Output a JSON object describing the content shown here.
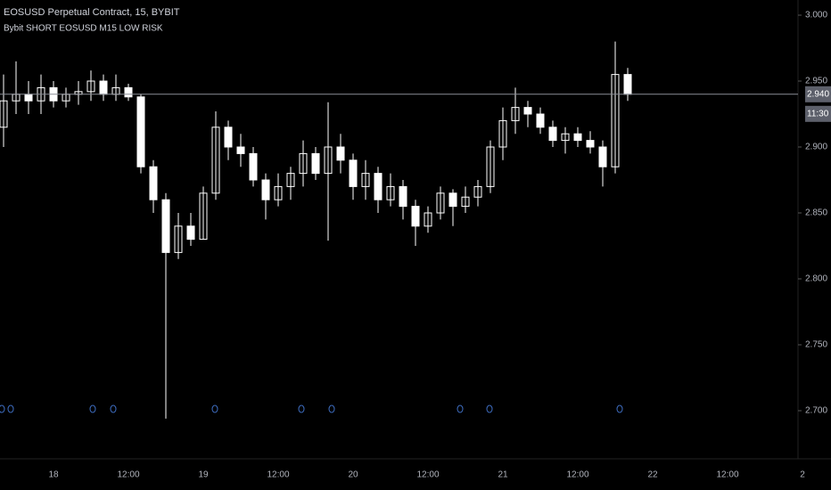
{
  "chart_data": {
    "type": "candlestick",
    "title": "EOSUSD Perpetual Contract, 15, BYBIT",
    "subtitle": "Bybit SHORT EOSUSD M15 LOW RISK",
    "categories": [
      null,
      null,
      null,
      null,
      "18",
      null,
      null,
      null,
      null,
      null,
      "12:00",
      null,
      null,
      null,
      null,
      null,
      "19",
      null,
      null,
      null,
      null,
      null,
      "12:00",
      null,
      null,
      null,
      null,
      null,
      "20",
      null,
      null,
      null,
      null,
      null,
      "12:00",
      null,
      null,
      null,
      null,
      null,
      "21",
      null,
      null,
      null,
      null,
      null,
      "12:00",
      null,
      null,
      null,
      null,
      null,
      "22",
      null,
      null,
      null,
      null,
      null,
      "12:00",
      null,
      null,
      null,
      null,
      null,
      "2"
    ],
    "open": [
      2.915,
      2.935,
      2.94,
      2.935,
      2.945,
      2.935,
      2.94,
      2.942,
      2.95,
      2.94,
      2.945,
      2.938,
      2.885,
      2.86,
      2.82,
      2.84,
      2.83,
      2.865,
      2.915,
      2.9,
      2.895,
      2.875,
      2.86,
      2.87,
      2.88,
      2.895,
      2.88,
      2.9,
      2.89,
      2.87,
      2.88,
      2.86,
      2.87,
      2.855,
      2.84,
      2.85,
      2.865,
      2.855,
      2.862,
      2.87,
      2.9,
      2.92,
      2.93,
      2.925,
      2.915,
      2.905,
      2.91,
      2.905,
      2.9,
      2.885,
      2.955,
      null,
      null,
      null,
      null,
      null,
      null,
      null,
      null,
      null,
      null,
      null,
      null,
      null,
      null
    ],
    "high": [
      2.955,
      2.965,
      2.95,
      2.955,
      2.95,
      2.945,
      2.95,
      2.958,
      2.955,
      2.955,
      2.948,
      2.94,
      2.89,
      2.865,
      2.85,
      2.85,
      2.87,
      2.927,
      2.92,
      2.91,
      2.9,
      2.88,
      2.88,
      2.885,
      2.905,
      2.9,
      2.934,
      2.91,
      2.895,
      2.89,
      2.885,
      2.88,
      2.875,
      2.86,
      2.855,
      2.87,
      2.868,
      2.87,
      2.875,
      2.905,
      2.93,
      2.945,
      2.935,
      2.93,
      2.92,
      2.915,
      2.915,
      2.912,
      2.905,
      2.98,
      2.96,
      null,
      null,
      null,
      null,
      null,
      null,
      null,
      null,
      null,
      null,
      null,
      null,
      null,
      null
    ],
    "low": [
      2.9,
      2.925,
      2.925,
      2.925,
      2.93,
      2.93,
      2.932,
      2.935,
      2.935,
      2.935,
      2.935,
      2.88,
      2.85,
      2.694,
      2.815,
      2.825,
      2.83,
      2.86,
      2.89,
      2.885,
      2.87,
      2.845,
      2.855,
      2.86,
      2.87,
      2.875,
      2.829,
      2.88,
      2.86,
      2.86,
      2.85,
      2.855,
      2.845,
      2.825,
      2.835,
      2.845,
      2.84,
      2.85,
      2.855,
      2.865,
      2.89,
      2.91,
      2.915,
      2.91,
      2.9,
      2.895,
      2.9,
      2.895,
      2.87,
      2.88,
      2.935,
      null,
      null,
      null,
      null,
      null,
      null,
      null,
      null,
      null,
      null,
      null,
      null,
      null,
      null
    ],
    "close": [
      2.935,
      2.94,
      2.935,
      2.945,
      2.935,
      2.94,
      2.942,
      2.95,
      2.94,
      2.945,
      2.938,
      2.885,
      2.86,
      2.82,
      2.84,
      2.83,
      2.865,
      2.915,
      2.9,
      2.895,
      2.875,
      2.86,
      2.87,
      2.88,
      2.895,
      2.88,
      2.9,
      2.89,
      2.87,
      2.88,
      2.86,
      2.87,
      2.855,
      2.84,
      2.85,
      2.865,
      2.855,
      2.862,
      2.87,
      2.9,
      2.92,
      2.93,
      2.925,
      2.915,
      2.905,
      2.91,
      2.905,
      2.9,
      2.885,
      2.955,
      2.94,
      null,
      null,
      null,
      null,
      null,
      null,
      null,
      null,
      null,
      null,
      null,
      null,
      null,
      null
    ],
    "up_color": "#ffffff",
    "down_color": "#ffffff",
    "ylim": [
      2.6635,
      3.0115
    ],
    "yticks": [
      {
        "value": 2.7,
        "label": "2.700"
      },
      {
        "value": 2.75,
        "label": "2.750"
      },
      {
        "value": 2.8,
        "label": "2.800"
      },
      {
        "value": 2.85,
        "label": "2.850"
      },
      {
        "value": 2.9,
        "label": "2.900"
      },
      {
        "value": 2.95,
        "label": "2.950"
      },
      {
        "value": 3.0,
        "label": "3.000"
      }
    ],
    "last_price": {
      "value": 2.94,
      "label": "2.940"
    },
    "countdown": "11:30"
  }
}
